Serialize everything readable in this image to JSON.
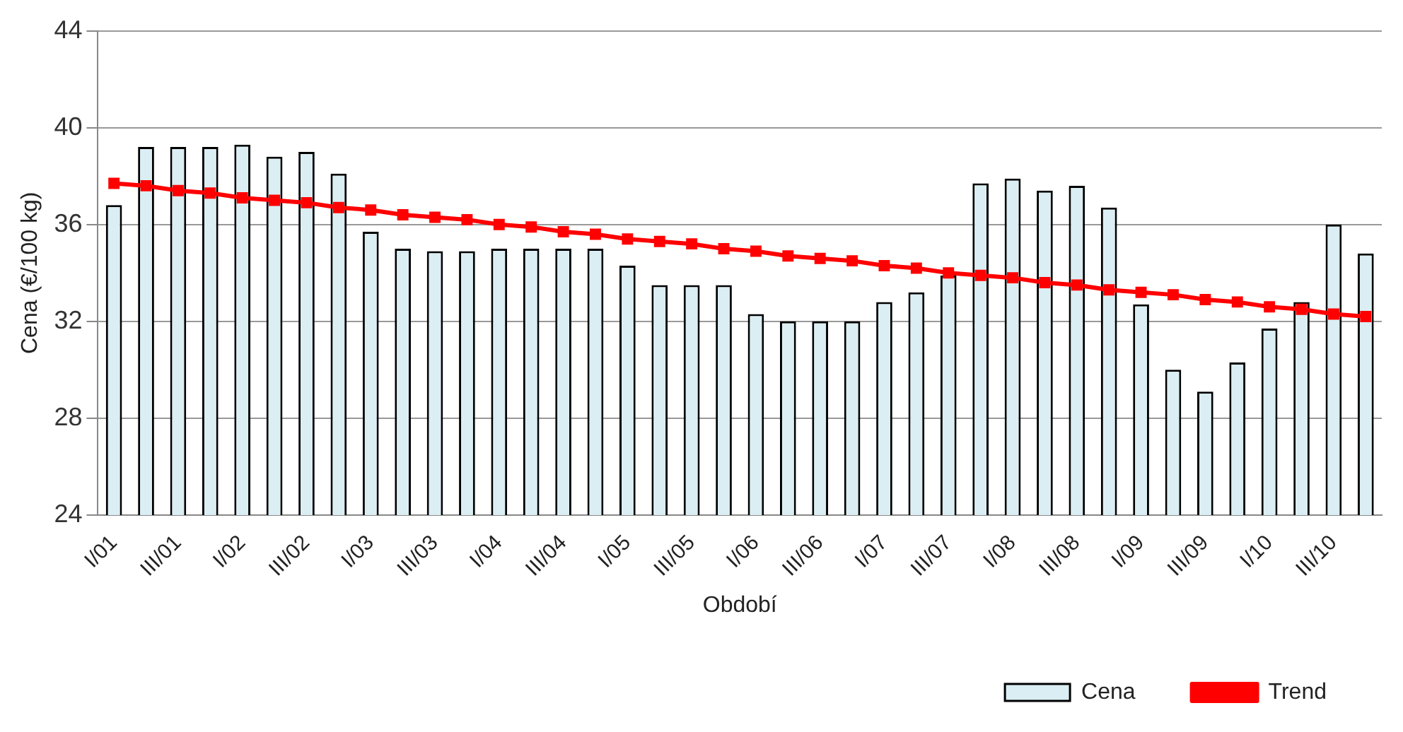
{
  "chart_data": {
    "type": "bar",
    "xlabel": "Období",
    "ylabel": "Cena (€/100 kg)",
    "categories": [
      "I/01",
      null,
      "III/01",
      null,
      "I/02",
      null,
      "III/02",
      null,
      "I/03",
      null,
      "III/03",
      null,
      "I/04",
      null,
      "III/04",
      null,
      "I/05",
      null,
      "III/05",
      null,
      "I/06",
      null,
      "III/06",
      null,
      "I/07",
      null,
      "III/07",
      null,
      "I/08",
      null,
      "III/08",
      null,
      "I/09",
      null,
      "III/09",
      null,
      "I/10",
      null,
      "III/10",
      null
    ],
    "series": [
      {
        "name": "Cena",
        "color": "#dbeef4",
        "values": [
          36.8,
          39.2,
          39.2,
          39.2,
          39.3,
          38.8,
          39.0,
          38.1,
          35.7,
          35.0,
          34.9,
          34.9,
          35.0,
          35.0,
          35.0,
          35.0,
          34.3,
          33.5,
          33.5,
          33.5,
          32.3,
          32.0,
          32.0,
          32.0,
          32.8,
          33.2,
          33.9,
          37.7,
          37.9,
          37.4,
          37.6,
          36.7,
          32.7,
          30.0,
          29.1,
          30.3,
          31.7,
          32.8,
          36.0,
          34.8
        ]
      },
      {
        "name": "Trend",
        "type": "line",
        "color": "#ff0000",
        "marker": "square",
        "line_style": "solid",
        "values": [
          37.7,
          37.6,
          37.4,
          37.3,
          37.1,
          37.0,
          36.9,
          36.7,
          36.6,
          36.4,
          36.3,
          36.2,
          36.0,
          35.9,
          35.7,
          35.6,
          35.4,
          35.3,
          35.2,
          35.0,
          34.9,
          34.7,
          34.6,
          34.5,
          34.3,
          34.2,
          34.0,
          33.9,
          33.8,
          33.6,
          33.5,
          33.3,
          33.2,
          33.1,
          32.9,
          32.8,
          32.6,
          32.5,
          32.3,
          32.2
        ]
      }
    ],
    "ylim": [
      24,
      44
    ],
    "yticks": [
      24,
      28,
      32,
      36,
      40,
      44
    ],
    "grid": "y",
    "legend": "bottom right"
  }
}
